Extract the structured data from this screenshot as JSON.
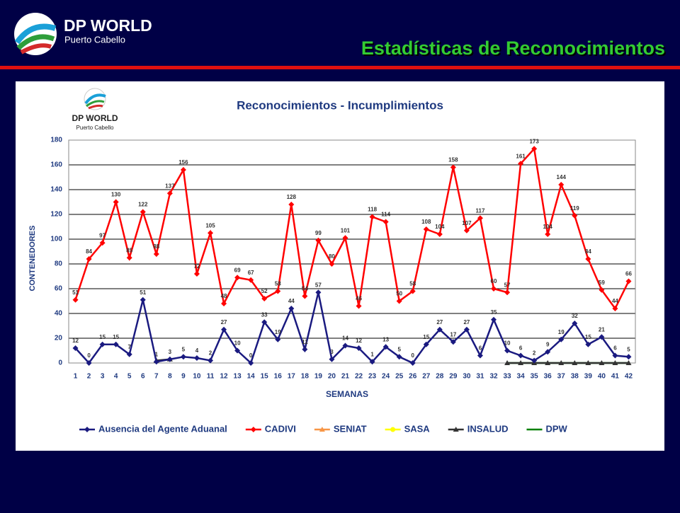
{
  "header": {
    "brand": "DP WORLD",
    "subbrand": "Puerto Cabello",
    "title": "Estadísticas de Reconocimientos"
  },
  "chart_data": {
    "type": "line",
    "title": "Reconocimientos - Incumplimientos",
    "logo": {
      "title": "DP WORLD",
      "subtitle": "Puerto Cabello"
    },
    "x_label": "SEMANAS",
    "y_label": "CONTENEDORES",
    "categories": [
      "1",
      "2",
      "3",
      "4",
      "5",
      "6",
      "7",
      "8",
      "9",
      "10",
      "11",
      "12",
      "13",
      "14",
      "15",
      "16",
      "17",
      "18",
      "19",
      "20",
      "21",
      "22",
      "23",
      "24",
      "25",
      "26",
      "27",
      "28",
      "29",
      "30",
      "31",
      "32",
      "33",
      "34",
      "35",
      "36",
      "37",
      "38",
      "39",
      "40",
      "41",
      "42"
    ],
    "ylim": [
      0,
      180
    ],
    "yticks": [
      0,
      20,
      40,
      60,
      80,
      100,
      120,
      140,
      160,
      180
    ],
    "grid": true,
    "legend": "bottom",
    "series": [
      {
        "name": "Ausencia del Agente Aduanal",
        "color": "#1a1a80",
        "marker": "diamond",
        "labels": true,
        "values": [
          12,
          0,
          15,
          15,
          7,
          51,
          1,
          3,
          5,
          4,
          2,
          27,
          10,
          0,
          33,
          19,
          44,
          11,
          57,
          3,
          14,
          12,
          1,
          13,
          5,
          0,
          15,
          27,
          17,
          27,
          6,
          35,
          10,
          6,
          2,
          9,
          19,
          32,
          15,
          21,
          6,
          5
        ]
      },
      {
        "name": "CADIVI",
        "color": "#ff0000",
        "marker": "diamond",
        "labels": true,
        "values": [
          51,
          84,
          97,
          130,
          85,
          122,
          88,
          137,
          156,
          72,
          105,
          48,
          69,
          67,
          52,
          58,
          128,
          54,
          99,
          80,
          101,
          46,
          118,
          114,
          50,
          58,
          108,
          104,
          158,
          107,
          117,
          60,
          57,
          161,
          173,
          104,
          144,
          119,
          84,
          59,
          44,
          66
        ]
      },
      {
        "name": "SENIAT",
        "color": "#f79646",
        "marker": "triangle",
        "labels": false,
        "values": [
          null,
          null,
          null,
          null,
          null,
          null,
          null,
          null,
          null,
          null,
          null,
          null,
          null,
          null,
          null,
          null,
          null,
          null,
          null,
          null,
          null,
          null,
          null,
          null,
          null,
          null,
          null,
          null,
          null,
          null,
          null,
          null,
          null,
          null,
          null,
          null,
          null,
          null,
          null,
          null,
          null,
          null
        ]
      },
      {
        "name": "SASA",
        "color": "#ffff00",
        "marker": "circle",
        "labels": false,
        "values": [
          null,
          null,
          null,
          null,
          null,
          null,
          null,
          null,
          null,
          null,
          null,
          null,
          null,
          null,
          null,
          null,
          null,
          null,
          null,
          null,
          null,
          null,
          null,
          null,
          null,
          null,
          null,
          null,
          null,
          null,
          null,
          null,
          null,
          null,
          null,
          null,
          null,
          null,
          null,
          null,
          null,
          null
        ]
      },
      {
        "name": "INSALUD",
        "color": "#333333",
        "marker": "triangle",
        "labels": false,
        "values": [
          null,
          null,
          null,
          null,
          null,
          null,
          2,
          3,
          null,
          null,
          null,
          null,
          null,
          null,
          null,
          null,
          null,
          null,
          null,
          null,
          null,
          null,
          null,
          null,
          null,
          null,
          null,
          null,
          null,
          null,
          null,
          null,
          0,
          0,
          0,
          0,
          0,
          0,
          0,
          0,
          0,
          0
        ]
      },
      {
        "name": "DPW",
        "color": "#008000",
        "marker": "none",
        "labels": false,
        "values": [
          null,
          null,
          null,
          null,
          null,
          null,
          null,
          null,
          null,
          null,
          null,
          null,
          null,
          null,
          null,
          null,
          null,
          null,
          null,
          null,
          null,
          null,
          null,
          null,
          null,
          null,
          null,
          null,
          null,
          null,
          null,
          null,
          0,
          0,
          0,
          0,
          0,
          0,
          0,
          0,
          0,
          0
        ]
      }
    ]
  }
}
